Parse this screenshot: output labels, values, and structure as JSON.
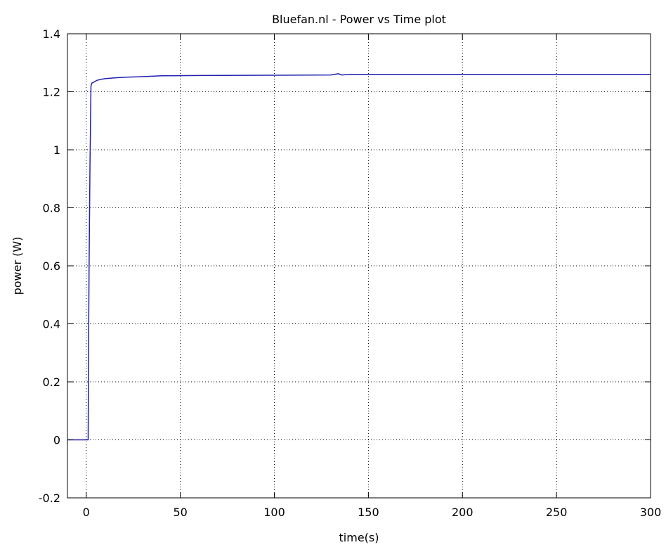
{
  "chart_data": {
    "type": "line",
    "title": "Bluefan.nl - Power vs Time plot",
    "xlabel": "time(s)",
    "ylabel": "power (W)",
    "xlim": [
      -10,
      300
    ],
    "ylim": [
      -0.2,
      1.4
    ],
    "xticks": [
      0,
      50,
      100,
      150,
      200,
      250,
      300
    ],
    "yticks": [
      -0.2,
      0,
      0.2,
      0.4,
      0.6,
      0.8,
      1,
      1.2,
      1.4
    ],
    "xtick_labels": [
      "0",
      "50",
      "100",
      "150",
      "200",
      "250",
      "300"
    ],
    "ytick_labels": [
      "-0.2",
      "0",
      "0.2",
      "0.4",
      "0.6",
      "0.8",
      "1",
      "1.2",
      "1.4"
    ],
    "grid": true,
    "line_color": "#2020b0",
    "series": [
      {
        "x": [
          -10,
          0,
          0.5,
          1,
          1.2,
          1.5,
          2,
          2.5,
          3,
          4,
          5,
          6,
          8,
          10,
          15,
          20,
          30,
          40,
          60,
          100,
          130,
          134,
          136,
          140,
          150,
          200,
          250,
          300
        ],
        "y": [
          0,
          0,
          0,
          0,
          0.3,
          0.6,
          0.95,
          1.22,
          1.23,
          1.233,
          1.237,
          1.24,
          1.243,
          1.245,
          1.248,
          1.25,
          1.252,
          1.255,
          1.256,
          1.257,
          1.258,
          1.262,
          1.258,
          1.26,
          1.26,
          1.26,
          1.26,
          1.26
        ]
      }
    ]
  }
}
